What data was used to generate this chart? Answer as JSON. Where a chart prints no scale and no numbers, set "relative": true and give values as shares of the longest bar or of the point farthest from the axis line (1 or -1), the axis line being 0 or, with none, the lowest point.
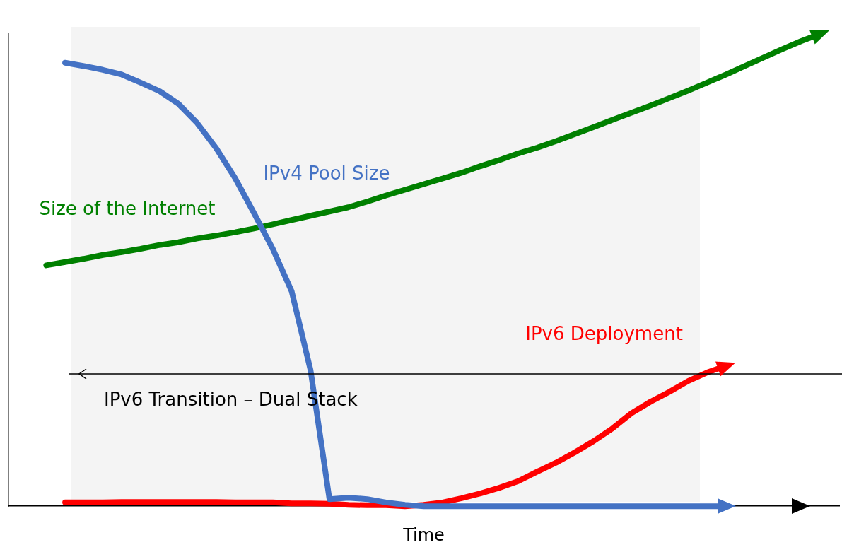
{
  "chart_data": {
    "type": "line",
    "relative": true,
    "xlabel": "Time",
    "legend": false,
    "marker": "none",
    "line_style": "solid",
    "categories": [
      null,
      null,
      null,
      null,
      null,
      null,
      null,
      null,
      null,
      null,
      null,
      null,
      null,
      null,
      null,
      null,
      null,
      null,
      null,
      null,
      null,
      null,
      null,
      null,
      null,
      null,
      null,
      null,
      null,
      null,
      null,
      null,
      null,
      null,
      null,
      null,
      null,
      null,
      null,
      null,
      null,
      null,
      null,
      null,
      null
    ],
    "series": [
      {
        "name": "IPv4 Pool Size",
        "color": "#4472c4",
        "values": [
          null,
          null,
          null,
          0.939,
          0.932,
          0.924,
          0.914,
          0.897,
          0.879,
          0.852,
          0.811,
          0.758,
          0.695,
          0.621,
          0.545,
          0.455,
          0.288,
          0.015,
          0.018,
          0.015,
          0.008,
          0.003,
          0,
          0,
          0,
          0,
          0,
          0,
          0,
          0,
          0,
          0,
          0,
          0,
          0,
          0,
          0,
          0,
          0,
          null,
          null,
          null,
          null,
          null,
          null
        ]
      },
      {
        "name": "Size of the Internet",
        "color": "#008000",
        "values": [
          null,
          null,
          0.51,
          0.517,
          0.524,
          0.532,
          0.538,
          0.545,
          0.553,
          0.559,
          0.567,
          0.573,
          0.58,
          0.588,
          0.597,
          0.606,
          0.615,
          0.624,
          0.633,
          0.645,
          0.658,
          0.67,
          0.682,
          0.694,
          0.706,
          0.72,
          0.733,
          0.747,
          0.759,
          0.773,
          0.788,
          0.803,
          0.818,
          0.833,
          0.848,
          0.864,
          0.88,
          0.897,
          0.914,
          0.932,
          0.95,
          0.968,
          0.985,
          1,
          null
        ]
      },
      {
        "name": "IPv6 Deployment",
        "color": "#ff0000",
        "values": [
          null,
          null,
          null,
          0.008,
          0.008,
          0.008,
          0.009,
          0.009,
          0.009,
          0.009,
          0.009,
          0.009,
          0.008,
          0.008,
          0.008,
          0.006,
          0.006,
          0.005,
          0.003,
          0.002,
          0.002,
          0,
          0.003,
          0.008,
          0.017,
          0.027,
          0.039,
          0.053,
          0.073,
          0.092,
          0.114,
          0.138,
          0.165,
          0.197,
          0.221,
          0.242,
          0.265,
          0.283,
          0.297,
          null,
          null,
          null,
          null,
          null,
          null
        ]
      }
    ],
    "ref_lines": [
      {
        "axis": "y",
        "value": 0.28,
        "label": "IPv6 Transition – Dual Stack",
        "color": "#000000"
      }
    ]
  }
}
